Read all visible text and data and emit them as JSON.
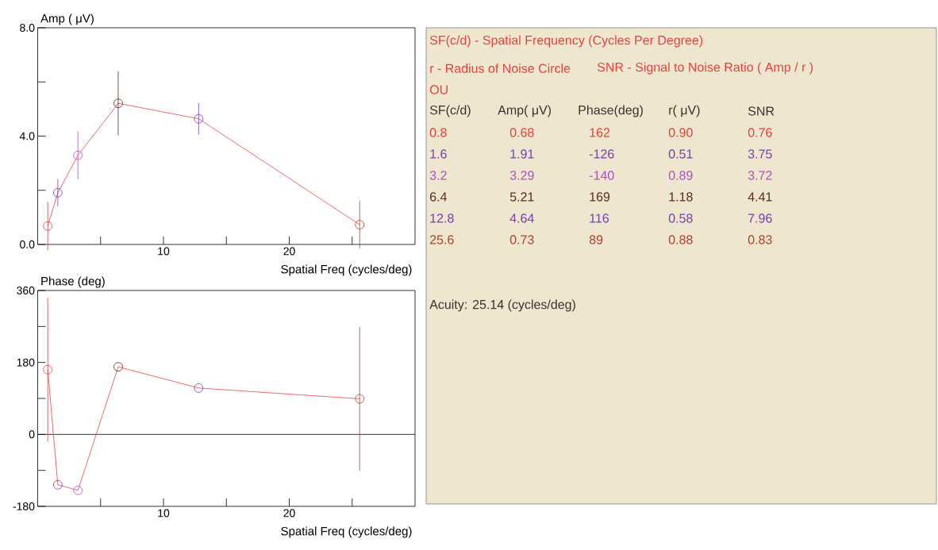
{
  "chart_data": [
    {
      "type": "line",
      "ylabel": "Amp ( μV)",
      "xlabel": "Spatial Freq (cycles/deg)",
      "x": [
        0.8,
        1.6,
        3.2,
        6.4,
        12.8,
        25.6
      ],
      "series": [
        {
          "color": "#f04040",
          "colors": [
            "#e8403a",
            "#7a3fb0",
            "#b050c0",
            "#5a2a20",
            "#7a3fb0",
            "#b04030"
          ],
          "values": [
            0.68,
            1.91,
            3.29,
            5.21,
            4.64,
            0.73
          ],
          "errors": [
            0.9,
            0.51,
            0.89,
            1.18,
            0.58,
            0.88
          ]
        }
      ],
      "marker": "circle",
      "xlim": [
        0,
        30
      ],
      "ylim": [
        0,
        8
      ],
      "xticks": [
        {
          "value": 5,
          "label": null
        },
        10,
        {
          "value": 15,
          "label": null
        },
        20,
        {
          "value": 25,
          "label": null
        }
      ],
      "yticks": [
        {
          "value": 0,
          "label": "0.0"
        },
        {
          "value": 2,
          "label": null
        },
        {
          "value": 4,
          "label": "4.0"
        },
        {
          "value": 6,
          "label": null
        },
        {
          "value": 8,
          "label": "8.0"
        }
      ]
    },
    {
      "type": "line",
      "ylabel": "Phase (deg)",
      "xlabel": "Spatial Freq (cycles/deg)",
      "x": [
        0.8,
        1.6,
        3.2,
        6.4,
        12.8,
        25.6
      ],
      "series": [
        {
          "color": "#f04040",
          "colors": [
            "#e8403a",
            "#7a3fb0",
            "#b050c0",
            "#5a2a20",
            "#7a3fb0",
            "#b04030"
          ],
          "values": [
            162,
            -126,
            -140,
            169,
            116,
            89
          ],
          "errors": [
            180,
            null,
            null,
            null,
            null,
            180
          ]
        }
      ],
      "marker": "circle",
      "xlim": [
        0,
        30
      ],
      "ylim": [
        -180,
        360
      ],
      "xticks": [
        {
          "value": 5,
          "label": null
        },
        10,
        {
          "value": 15,
          "label": null
        },
        20,
        {
          "value": 25,
          "label": null
        }
      ],
      "yticks": [
        -180,
        {
          "value": -90,
          "label": null
        },
        0,
        {
          "value": 90,
          "label": null
        },
        180,
        {
          "value": 270,
          "label": null
        },
        360
      ],
      "ref_lines": [
        {
          "axis": "y",
          "value": 0,
          "color": "#000000"
        }
      ]
    },
    {
      "type": "other",
      "annotations": [
        "SF(c/d) - Spatial Frequency (Cycles Per Degree)",
        "r - Radius of Noise Circle",
        "SNR - Signal to Noise Ratio ( Amp / r )",
        "OU",
        "SF(c/d)",
        "Amp( μV)",
        "Phase(deg)",
        "r( μV)",
        "SNR",
        "0.8",
        "0.68",
        "162",
        "0.90",
        "0.76",
        "1.6",
        "1.91",
        "-126",
        "0.51",
        "3.75",
        "3.2",
        "3.29",
        "-140",
        "0.89",
        "3.72",
        "6.4",
        "5.21",
        "169",
        "1.18",
        "4.41",
        "12.8",
        "4.64",
        "116",
        "0.58",
        "7.96",
        "25.6",
        "0.73",
        "89",
        "0.88",
        "0.83",
        "Acuity: 25.14 (cycles/deg)"
      ]
    }
  ]
}
